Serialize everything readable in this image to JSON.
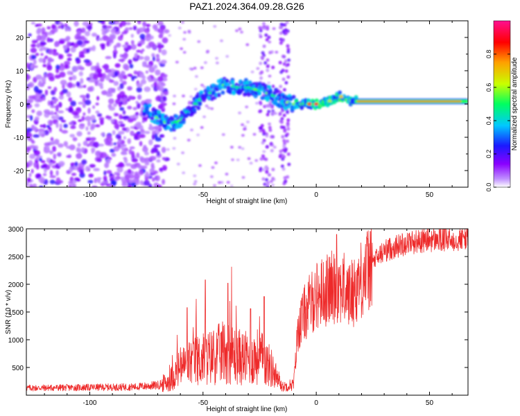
{
  "title": "PAZ1.2024.364.09.28.G26",
  "colors": {
    "snr_line": "#ee2a2a",
    "axis": "#000000"
  },
  "chart_data": [
    {
      "type": "heatmap",
      "name": "spectrogram",
      "xlabel": "Height of straight line (km)",
      "ylabel": "Frequency (Hz)",
      "xlim": [
        -128,
        67
      ],
      "ylim": [
        -25,
        25
      ],
      "xticks": [
        -100,
        -50,
        0,
        50
      ],
      "yticks": [
        -20,
        -10,
        0,
        10,
        20
      ],
      "xticklabels": [
        "-100",
        "-50",
        "0",
        "50"
      ],
      "yticklabels": [
        "-20",
        "-10",
        "0",
        "10",
        "20"
      ],
      "colorbar": {
        "label": "Normalized spectral amplitude",
        "range": [
          0,
          1
        ],
        "ticks": [
          0.0,
          0.2,
          0.4,
          0.6,
          0.8
        ],
        "ticklabels": [
          "0.0",
          "0.2",
          "0.4",
          "0.6",
          "0.8"
        ],
        "colormap": [
          "#ffffff",
          "#8a00ff",
          "#1a1aff",
          "#00c8ff",
          "#00ff60",
          "#c8ff00",
          "#ffa000",
          "#ff0000",
          "#ff1090"
        ]
      },
      "ridge": {
        "x": [
          -75,
          -70,
          -65,
          -60,
          -55,
          -50,
          -45,
          -40,
          -35,
          -30,
          -25,
          -20,
          -15,
          -10,
          -5,
          0,
          5,
          10,
          15,
          20,
          30,
          40,
          50,
          60,
          67
        ],
        "y": [
          -2,
          -4,
          -6,
          -5,
          -1,
          2,
          4,
          6,
          5,
          5,
          4,
          3,
          1,
          0,
          0,
          0,
          0.5,
          2.5,
          1,
          0.8,
          0.8,
          0.8,
          0.8,
          0.8,
          0.8
        ]
      }
    },
    {
      "type": "line",
      "name": "snr",
      "xlabel": "Height of straight line (km)",
      "ylabel": "SNR (10 * v/v)",
      "xlim": [
        -128,
        67
      ],
      "ylim": [
        0,
        3000
      ],
      "xticks": [
        -100,
        -50,
        0,
        50
      ],
      "yticks": [
        500,
        1000,
        1500,
        2000,
        2500,
        3000
      ],
      "xticklabels": [
        "-100",
        "-50",
        "0",
        "50"
      ],
      "yticklabels": [
        "500",
        "1000",
        "1500",
        "2000",
        "2500",
        "3000"
      ],
      "envelope": {
        "x": [
          -128,
          -100,
          -80,
          -70,
          -65,
          -60,
          -55,
          -50,
          -45,
          -40,
          -35,
          -30,
          -25,
          -20,
          -15,
          -10,
          -8,
          -5,
          0,
          5,
          10,
          15,
          20,
          25,
          30,
          40,
          50,
          60,
          67
        ],
        "y": [
          130,
          140,
          150,
          180,
          250,
          500,
          600,
          650,
          700,
          800,
          700,
          650,
          700,
          500,
          150,
          200,
          1200,
          1500,
          1800,
          1900,
          2000,
          1800,
          2100,
          2400,
          2600,
          2750,
          2800,
          2800,
          2850
        ]
      },
      "spikes": [
        {
          "x": -57,
          "y": 1580
        },
        {
          "x": -49,
          "y": 2080
        },
        {
          "x": -39,
          "y": 2020
        },
        {
          "x": -29,
          "y": 1560
        },
        {
          "x": -23,
          "y": 1780
        },
        {
          "x": 9,
          "y": 2900
        }
      ]
    }
  ]
}
